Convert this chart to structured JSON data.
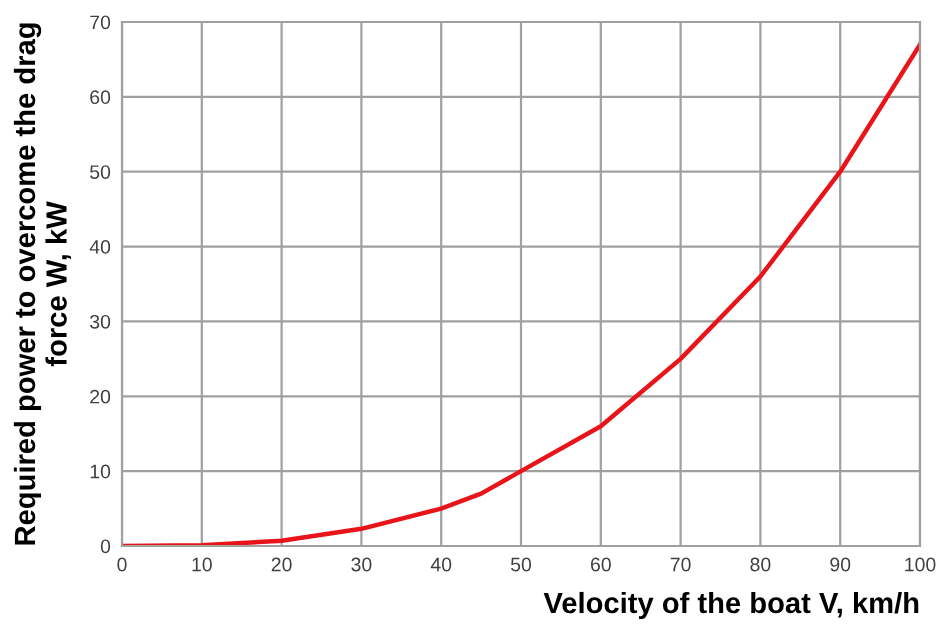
{
  "chart_data": {
    "type": "line",
    "xlabel": "Velocity of the boat V, km/h",
    "ylabel": "Required power to overcome the drag\nforce W, kW",
    "x": [
      0,
      10,
      20,
      30,
      40,
      45,
      50,
      60,
      70,
      80,
      90,
      100
    ],
    "series": [
      {
        "color": "#e8141a",
        "values": [
          0,
          0.1,
          0.7,
          2.3,
          5,
          7,
          10,
          16,
          25,
          36,
          50,
          67
        ]
      }
    ],
    "xlim": [
      0,
      100
    ],
    "xticks": [
      0,
      10,
      20,
      30,
      40,
      50,
      60,
      70,
      80,
      90,
      100
    ],
    "ylim": [
      0,
      70
    ],
    "yticks": [
      0,
      10,
      20,
      30,
      40,
      50,
      60,
      70
    ],
    "grid": true,
    "legend": false,
    "marker": "none",
    "line_style": "solid"
  }
}
